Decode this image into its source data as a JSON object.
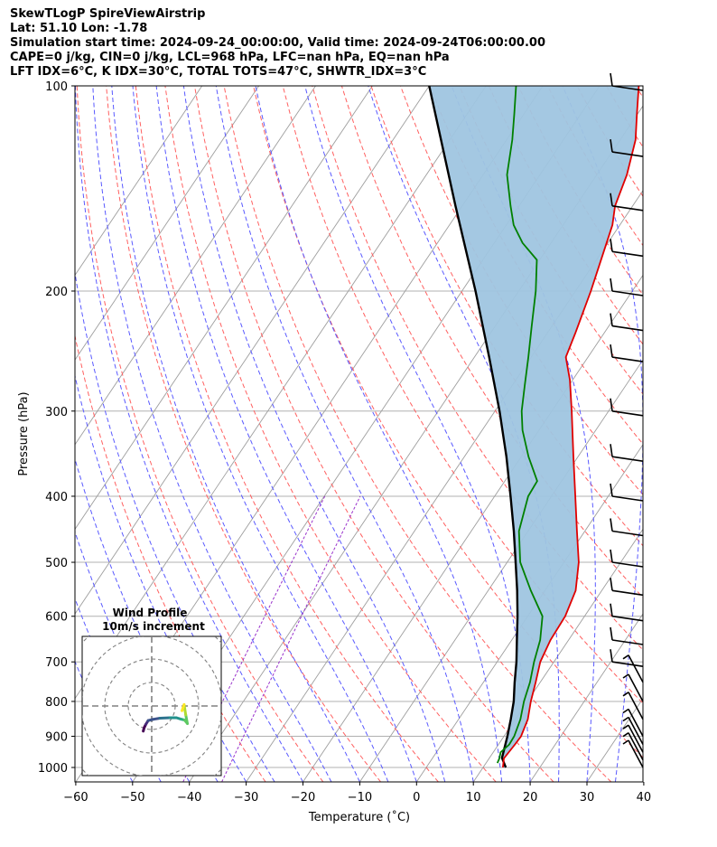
{
  "header": {
    "line1": "SkewTLogP SpireViewAirstrip",
    "line2": "Lat: 51.10   Lon: -1.78",
    "line3": "Simulation start time: 2024-09-24_00:00:00, Valid time: 2024-09-24T06:00:00.00",
    "line4": "CAPE=0 j/kg, CIN=0 j/kg, LCL=968 hPa, LFC=nan hPa, EQ=nan hPa",
    "line5": "LFT IDX=6°C, K IDX=30°C, TOTAL TOTS=47°C, SHWTR_IDX=3°C"
  },
  "colors": {
    "temperature": "#e00000",
    "dewpoint": "#008000",
    "parcel": "#000000",
    "shading": "#9fc5e0",
    "dry_adiabat": "#ff6060",
    "moist_adiabat": "#5a5aff",
    "mixing_ratio": "#9932cc",
    "isotherm": "#9e9e9e",
    "isobar": "#b0b0b0"
  },
  "chart_data": [
    {
      "type": "line",
      "subtype": "skew-t log-p",
      "xlabel": "Temperature (˚C)",
      "ylabel": "Pressure (hPa)",
      "xlim": [
        -60,
        40
      ],
      "ylim": [
        1050,
        100
      ],
      "y_scale": "log",
      "x_ticks": [
        -60,
        -50,
        -40,
        -30,
        -20,
        -10,
        0,
        10,
        20,
        30,
        40
      ],
      "x_tick_labels": [
        "−60",
        "−50",
        "−40",
        "−30",
        "−20",
        "−10",
        "0",
        "10",
        "20",
        "30",
        "40"
      ],
      "y_ticks": [
        100,
        200,
        300,
        400,
        500,
        600,
        700,
        800,
        900,
        1000
      ],
      "y_tick_labels": [
        "100",
        "200",
        "300",
        "400",
        "500",
        "600",
        "700",
        "800",
        "900",
        "1000"
      ],
      "grid": true,
      "series": [
        {
          "role": "temperature",
          "points": [
            [
              1000,
              13.5
            ],
            [
              970,
              12.6
            ],
            [
              925,
              12.9
            ],
            [
              900,
              13.0
            ],
            [
              850,
              12.2
            ],
            [
              800,
              10.6
            ],
            [
              750,
              9.2
            ],
            [
              700,
              7.6
            ],
            [
              650,
              6.8
            ],
            [
              600,
              6.6
            ],
            [
              550,
              5.4
            ],
            [
              500,
              2.6
            ],
            [
              450,
              -1.4
            ],
            [
              400,
              -5.8
            ],
            [
              350,
              -10.8
            ],
            [
              300,
              -16.5
            ],
            [
              270,
              -20.5
            ],
            [
              250,
              -23.9
            ],
            [
              230,
              -25.1
            ],
            [
              200,
              -27.3
            ],
            [
              175,
              -29.7
            ],
            [
              160,
              -31.3
            ],
            [
              150,
              -33.1
            ],
            [
              135,
              -34.7
            ],
            [
              120,
              -37.3
            ],
            [
              110,
              -40.1
            ],
            [
              100,
              -43.1
            ]
          ]
        },
        {
          "role": "dewpoint",
          "points": [
            [
              985,
              12.0
            ],
            [
              970,
              11.8
            ],
            [
              950,
              11.3
            ],
            [
              925,
              11.9
            ],
            [
              900,
              11.8
            ],
            [
              850,
              10.9
            ],
            [
              800,
              9.4
            ],
            [
              750,
              8.2
            ],
            [
              700,
              6.5
            ],
            [
              650,
              5.0
            ],
            [
              600,
              2.6
            ],
            [
              550,
              -2.5
            ],
            [
              500,
              -7.7
            ],
            [
              450,
              -11.6
            ],
            [
              400,
              -14.1
            ],
            [
              380,
              -14.3
            ],
            [
              350,
              -18.7
            ],
            [
              320,
              -22.9
            ],
            [
              300,
              -25.3
            ],
            [
              275,
              -27.8
            ],
            [
              250,
              -30.5
            ],
            [
              225,
              -33.6
            ],
            [
              200,
              -37.0
            ],
            [
              180,
              -40.5
            ],
            [
              170,
              -45.0
            ],
            [
              160,
              -48.7
            ],
            [
              150,
              -51.5
            ],
            [
              135,
              -55.8
            ],
            [
              120,
              -59.0
            ],
            [
              110,
              -61.7
            ],
            [
              100,
              -64.7
            ]
          ]
        },
        {
          "role": "parcel",
          "points": [
            [
              1000,
              14.0
            ],
            [
              968,
              12.2
            ],
            [
              900,
              10.6
            ],
            [
              850,
              9.2
            ],
            [
              800,
              7.6
            ],
            [
              750,
              5.5
            ],
            [
              700,
              3.4
            ],
            [
              650,
              0.9
            ],
            [
              600,
              -1.8
            ],
            [
              550,
              -4.9
            ],
            [
              500,
              -8.5
            ],
            [
              450,
              -12.5
            ],
            [
              400,
              -17.2
            ],
            [
              350,
              -22.6
            ],
            [
              300,
              -29.2
            ],
            [
              250,
              -37.4
            ],
            [
              200,
              -47.6
            ],
            [
              150,
              -61.2
            ],
            [
              100,
              -80.0
            ]
          ]
        }
      ],
      "wind_barbs_hpa": [
        1000,
        975,
        950,
        925,
        900,
        850,
        800,
        750,
        700,
        650,
        600,
        550,
        500,
        450,
        400,
        350,
        300,
        250,
        225,
        200,
        175,
        150,
        125,
        100
      ]
    },
    {
      "type": "scatter",
      "subtype": "hodograph",
      "title": "Wind Profile",
      "subtitle": "10m/s increment",
      "ring_increment": 10,
      "points": [
        [
          -3.6,
          -10.7
        ],
        [
          -3.2,
          -9.2
        ],
        [
          -2.5,
          -7.8
        ],
        [
          -1.5,
          -6.2
        ],
        [
          0.5,
          -5.7
        ],
        [
          3.5,
          -5.2
        ],
        [
          7.8,
          -5.0
        ],
        [
          10.5,
          -5.0
        ],
        [
          12.5,
          -5.6
        ],
        [
          14.0,
          -6.0
        ],
        [
          15.2,
          -7.5
        ],
        [
          14.5,
          -3.8
        ],
        [
          13.8,
          0.6
        ],
        [
          12.9,
          -2.0
        ]
      ]
    }
  ]
}
